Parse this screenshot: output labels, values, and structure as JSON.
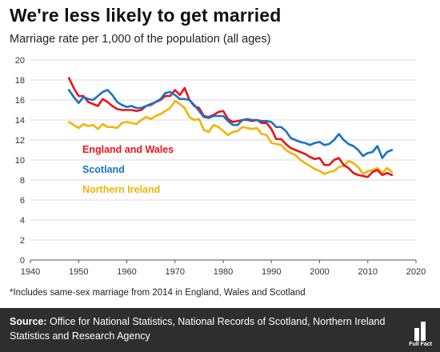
{
  "header": {
    "title": "We're less likely to get married",
    "subtitle": "Marriage rate per 1,000 of the population (all ages)"
  },
  "footnote": "*Includes same-sex marriage from 2014 in England, Wales and Scotland",
  "source": {
    "label": "Source:",
    "text": "Office for National Statistics, National Records of Scotland, Northern Ireland Statistics and Research Agency"
  },
  "logo": {
    "text": "Full Fact",
    "icon": "full-fact-logo"
  },
  "chart_data": {
    "type": "line",
    "title": "We're less likely to get married",
    "subtitle": "Marriage rate per 1,000 of the population (all ages)",
    "xlabel": "",
    "ylabel": "",
    "xlim": [
      1940,
      2020
    ],
    "ylim": [
      0,
      20
    ],
    "x_ticks": [
      1940,
      1950,
      1960,
      1970,
      1980,
      1990,
      2000,
      2010,
      2020
    ],
    "y_ticks": [
      0,
      2,
      4,
      6,
      8,
      10,
      12,
      14,
      16,
      18,
      20
    ],
    "grid": "horizontal",
    "legend_placement": "inline-left",
    "x": [
      1948,
      1949,
      1950,
      1951,
      1952,
      1953,
      1954,
      1955,
      1956,
      1957,
      1958,
      1959,
      1960,
      1961,
      1962,
      1963,
      1964,
      1965,
      1966,
      1967,
      1968,
      1969,
      1970,
      1971,
      1972,
      1973,
      1974,
      1975,
      1976,
      1977,
      1978,
      1979,
      1980,
      1981,
      1982,
      1983,
      1984,
      1985,
      1986,
      1987,
      1988,
      1989,
      1990,
      1991,
      1992,
      1993,
      1994,
      1995,
      1996,
      1997,
      1998,
      1999,
      2000,
      2001,
      2002,
      2003,
      2004,
      2005,
      2006,
      2007,
      2008,
      2009,
      2010,
      2011,
      2012,
      2013,
      2014,
      2015
    ],
    "series": [
      {
        "name": "England and Wales",
        "color": "#e8141c",
        "values": [
          18.2,
          17.2,
          16.4,
          16.4,
          15.8,
          15.6,
          15.4,
          16.1,
          15.8,
          15.4,
          15.1,
          15.0,
          15.0,
          15.0,
          14.9,
          15.0,
          15.4,
          15.5,
          15.8,
          16.0,
          16.4,
          16.4,
          17.0,
          16.5,
          17.2,
          16.0,
          15.4,
          15.2,
          14.4,
          14.3,
          14.5,
          14.8,
          14.9,
          14.1,
          13.8,
          13.9,
          14.0,
          14.0,
          13.9,
          14.0,
          13.7,
          13.7,
          13.1,
          12.1,
          12.1,
          11.6,
          11.2,
          11.0,
          10.8,
          10.6,
          10.3,
          10.1,
          10.2,
          9.5,
          9.5,
          10.0,
          10.2,
          9.5,
          9.2,
          8.7,
          8.5,
          8.4,
          8.3,
          8.8,
          9.0,
          8.5,
          8.7,
          8.5
        ]
      },
      {
        "name": "Scotland",
        "color": "#1a73c2",
        "values": [
          17.0,
          16.3,
          15.7,
          16.3,
          16.1,
          16.0,
          16.4,
          16.8,
          17.0,
          16.5,
          15.8,
          15.5,
          15.3,
          15.4,
          15.2,
          15.2,
          15.4,
          15.6,
          15.8,
          16.1,
          16.7,
          16.8,
          16.5,
          16.1,
          16.1,
          16.0,
          15.5,
          14.9,
          14.3,
          14.2,
          14.4,
          14.4,
          14.4,
          13.9,
          13.5,
          13.5,
          14.0,
          14.1,
          14.0,
          14.0,
          13.9,
          13.9,
          13.8,
          13.3,
          13.3,
          12.9,
          12.2,
          12.0,
          11.8,
          11.7,
          11.5,
          11.7,
          11.8,
          11.5,
          11.6,
          12.0,
          12.6,
          12.0,
          11.6,
          11.4,
          11.0,
          10.4,
          10.7,
          10.8,
          11.4,
          10.2,
          10.8,
          11.0
        ]
      },
      {
        "name": "Northern Ireland",
        "color": "#f2b400",
        "values": [
          13.8,
          13.5,
          13.2,
          13.6,
          13.4,
          13.5,
          13.1,
          13.6,
          13.3,
          13.3,
          13.2,
          13.7,
          13.8,
          13.7,
          13.6,
          14.0,
          14.3,
          14.1,
          14.4,
          14.6,
          14.9,
          15.2,
          15.9,
          15.6,
          15.2,
          14.3,
          14.0,
          14.1,
          13.0,
          12.8,
          13.5,
          13.3,
          12.9,
          12.5,
          12.8,
          12.9,
          13.3,
          13.2,
          13.1,
          13.2,
          12.6,
          12.5,
          11.7,
          11.6,
          11.5,
          11.0,
          10.7,
          10.5,
          10.0,
          9.7,
          9.4,
          9.1,
          8.9,
          8.6,
          8.8,
          8.9,
          9.3,
          9.4,
          9.9,
          9.7,
          9.3,
          8.6,
          8.9,
          9.0,
          9.2,
          8.7,
          9.2,
          8.8
        ]
      }
    ]
  }
}
